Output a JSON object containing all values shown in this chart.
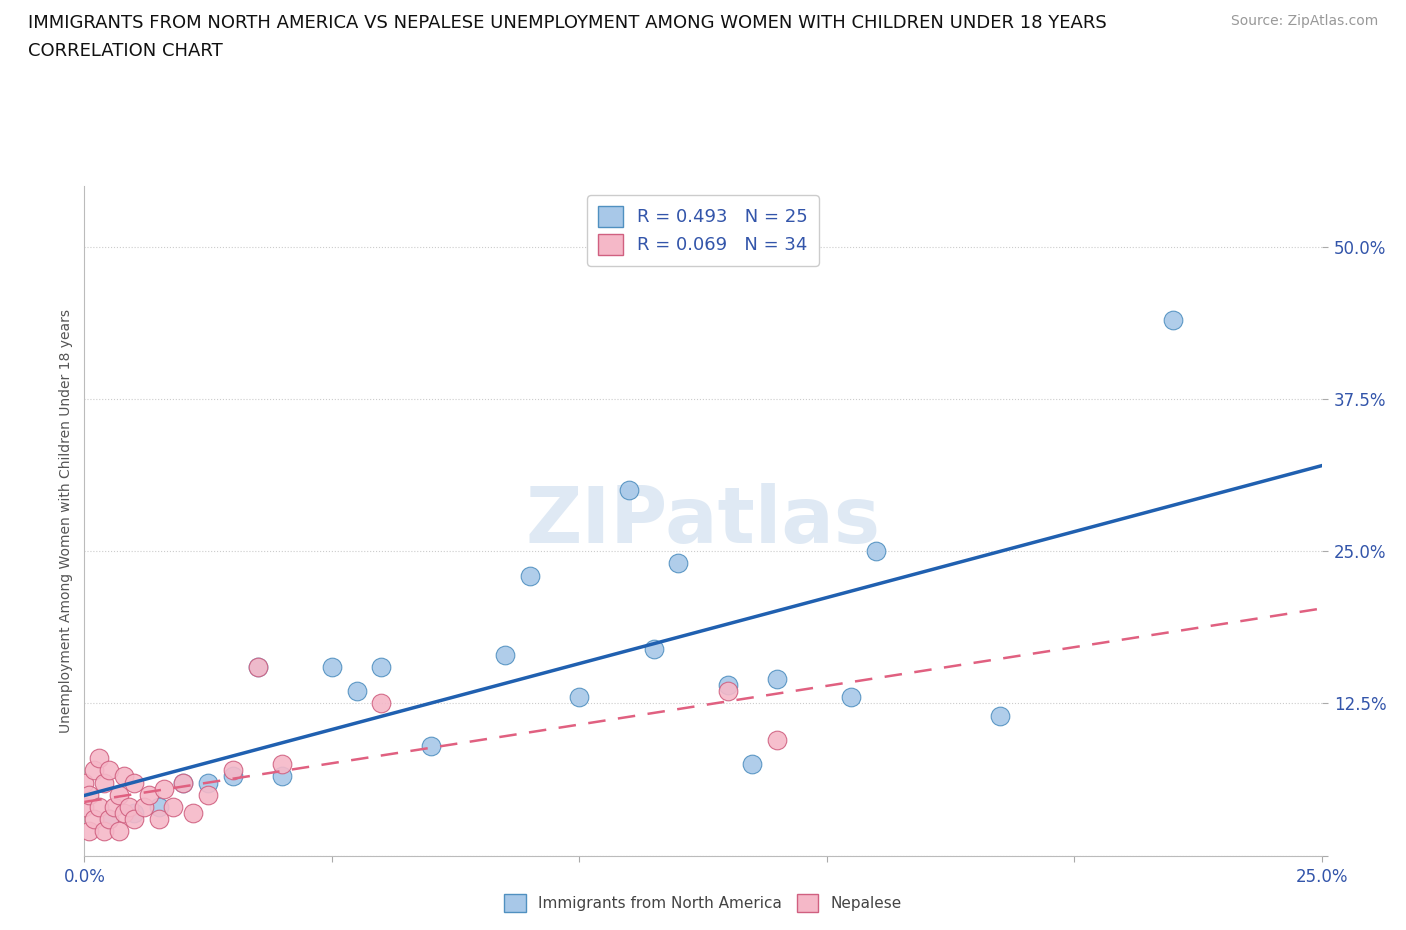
{
  "title_line1": "IMMIGRANTS FROM NORTH AMERICA VS NEPALESE UNEMPLOYMENT AMONG WOMEN WITH CHILDREN UNDER 18 YEARS",
  "title_line2": "CORRELATION CHART",
  "source": "Source: ZipAtlas.com",
  "ylabel": "Unemployment Among Women with Children Under 18 years",
  "xlim": [
    0.0,
    0.25
  ],
  "ylim": [
    0.0,
    0.55
  ],
  "yticks": [
    0.0,
    0.125,
    0.25,
    0.375,
    0.5
  ],
  "xticks": [
    0.0,
    0.05,
    0.1,
    0.15,
    0.2,
    0.25
  ],
  "xtick_labels": [
    "0.0%",
    "",
    "",
    "",
    "",
    "25.0%"
  ],
  "ytick_labels_right": [
    "",
    "12.5%",
    "25.0%",
    "37.5%",
    "50.0%"
  ],
  "blue_R": "0.493",
  "blue_N": "25",
  "pink_R": "0.069",
  "pink_N": "34",
  "blue_color": "#a8c8e8",
  "pink_color": "#f5b8c8",
  "blue_edge": "#5090c0",
  "pink_edge": "#d06080",
  "blue_line_color": "#2060b0",
  "pink_line_color": "#e06080",
  "watermark": "ZIPatlas",
  "blue_scatter_x": [
    0.005,
    0.01,
    0.015,
    0.02,
    0.025,
    0.03,
    0.035,
    0.04,
    0.05,
    0.055,
    0.06,
    0.07,
    0.085,
    0.09,
    0.1,
    0.11,
    0.115,
    0.12,
    0.13,
    0.135,
    0.14,
    0.155,
    0.16,
    0.185,
    0.22
  ],
  "blue_scatter_y": [
    0.03,
    0.035,
    0.04,
    0.06,
    0.06,
    0.065,
    0.155,
    0.065,
    0.155,
    0.135,
    0.155,
    0.09,
    0.165,
    0.23,
    0.13,
    0.3,
    0.17,
    0.24,
    0.14,
    0.075,
    0.145,
    0.13,
    0.25,
    0.115,
    0.44
  ],
  "pink_scatter_x": [
    0.0,
    0.0,
    0.001,
    0.001,
    0.002,
    0.002,
    0.003,
    0.003,
    0.004,
    0.004,
    0.005,
    0.005,
    0.006,
    0.007,
    0.007,
    0.008,
    0.008,
    0.009,
    0.01,
    0.01,
    0.012,
    0.013,
    0.015,
    0.016,
    0.018,
    0.02,
    0.022,
    0.025,
    0.03,
    0.035,
    0.04,
    0.06,
    0.13,
    0.14
  ],
  "pink_scatter_y": [
    0.04,
    0.06,
    0.02,
    0.05,
    0.03,
    0.07,
    0.04,
    0.08,
    0.02,
    0.06,
    0.03,
    0.07,
    0.04,
    0.02,
    0.05,
    0.035,
    0.065,
    0.04,
    0.03,
    0.06,
    0.04,
    0.05,
    0.03,
    0.055,
    0.04,
    0.06,
    0.035,
    0.05,
    0.07,
    0.155,
    0.075,
    0.125,
    0.135,
    0.095
  ],
  "title_fontsize": 13,
  "subtitle_fontsize": 13,
  "tick_fontsize": 12,
  "ylabel_fontsize": 10,
  "legend_fontsize": 13,
  "source_fontsize": 10
}
